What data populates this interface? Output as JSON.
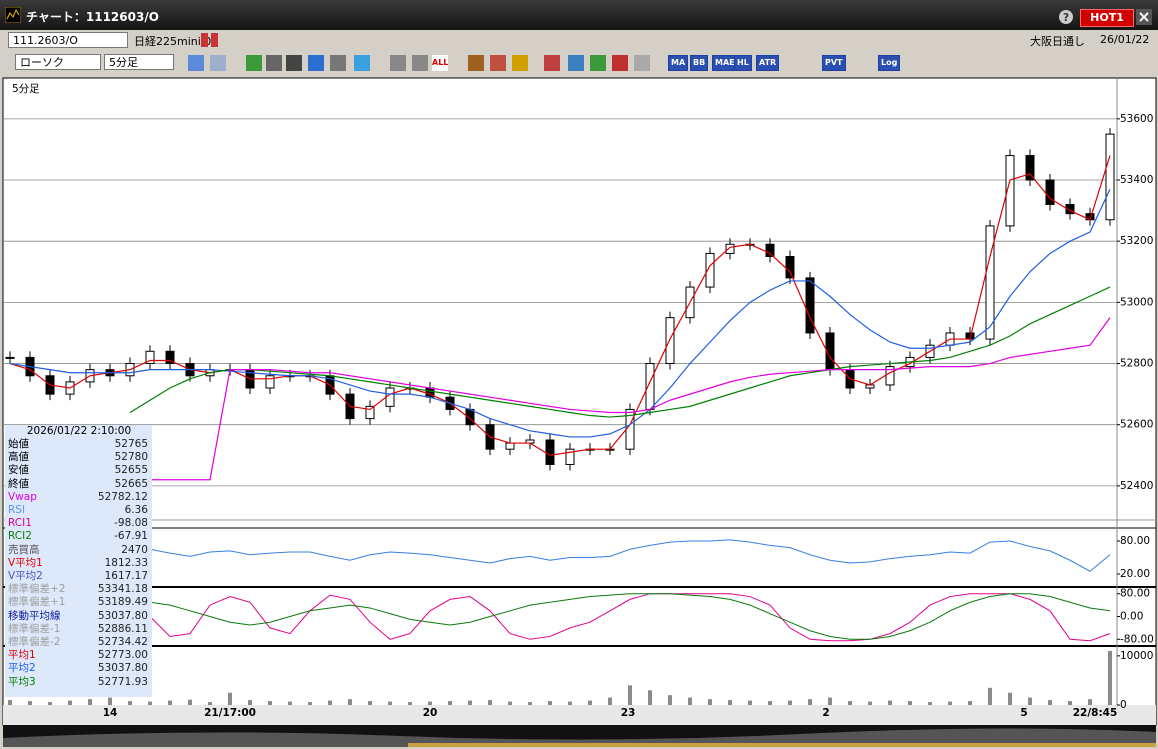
{
  "window": {
    "title": "チャート：1112603/O",
    "badge": "HOT1"
  },
  "toolbar": {
    "symbol": "111.2603/O",
    "name": "日経225mini 03",
    "market": "大阪日通し",
    "date": "26/01/22",
    "chart_type": "ローソク",
    "interval": "5分足",
    "buttons": [
      "ALL",
      "MA",
      "BB",
      "MAE",
      "HL",
      "ATR",
      "PVT",
      "Log"
    ]
  },
  "chart_data": [
    {
      "type": "candlestick",
      "title": "5分足",
      "ylim": [
        52295,
        53727
      ],
      "yticks": [
        52400,
        52600,
        52800,
        53000,
        53200,
        53400,
        53600
      ],
      "grid": true,
      "xtick_labels": [
        "14",
        "21/17:00",
        "20",
        "23",
        "2",
        "5",
        "22/8:45"
      ],
      "series": [
        {
          "color": "#000000",
          "values": [
            52820,
            52760,
            52700,
            52740,
            52780,
            52760,
            52800,
            52840,
            52800,
            52760,
            52780,
            52780,
            52720,
            52760,
            52760,
            52760,
            52700,
            52620,
            52660,
            52720,
            52720,
            52690,
            52650,
            52600,
            52520,
            52540,
            52550,
            52470,
            52520,
            52520,
            52520,
            52650,
            52800,
            52950,
            53050,
            53160,
            53190,
            53190,
            53150,
            53080,
            52900,
            52780,
            52720,
            52730,
            52790,
            52820,
            52860,
            52900,
            52880,
            53250,
            53480,
            53400,
            53320,
            53290,
            53270,
            53550
          ]
        },
        {
          "color": "#e00000",
          "values": [
            52800,
            52780,
            52730,
            52720,
            52760,
            52770,
            52780,
            52810,
            52810,
            52780,
            52770,
            52780,
            52750,
            52750,
            52760,
            52760,
            52730,
            52660,
            52650,
            52700,
            52720,
            52700,
            52670,
            52620,
            52560,
            52540,
            52540,
            52500,
            52510,
            52520,
            52520,
            52600,
            52740,
            52880,
            53000,
            53120,
            53180,
            53190,
            53160,
            53100,
            52950,
            52820,
            52750,
            52730,
            52770,
            52800,
            52840,
            52880,
            52880,
            53150,
            53400,
            53420,
            53340,
            53300,
            53270,
            53480
          ]
        },
        {
          "color": "#1f5fe0",
          "values": [
            52800,
            52790,
            52780,
            52770,
            52770,
            52770,
            52770,
            52780,
            52780,
            52780,
            52780,
            52775,
            52770,
            52765,
            52760,
            52760,
            52750,
            52730,
            52710,
            52700,
            52700,
            52690,
            52670,
            52650,
            52620,
            52600,
            52580,
            52570,
            52560,
            52560,
            52570,
            52600,
            52650,
            52720,
            52800,
            52870,
            52940,
            53000,
            53040,
            53070,
            53070,
            53020,
            52960,
            52910,
            52870,
            52850,
            52850,
            52860,
            52870,
            52920,
            53020,
            53100,
            53160,
            53200,
            53230,
            53370
          ]
        },
        {
          "color": "#008000",
          "values": [
            null,
            null,
            null,
            null,
            null,
            null,
            52640,
            52680,
            52720,
            52750,
            52770,
            52780,
            52780,
            52775,
            52770,
            52765,
            52760,
            52750,
            52740,
            52730,
            52720,
            52710,
            52700,
            52690,
            52680,
            52670,
            52660,
            52650,
            52640,
            52630,
            52625,
            52630,
            52640,
            52650,
            52660,
            52680,
            52700,
            52720,
            52740,
            52760,
            52770,
            52780,
            52790,
            52795,
            52800,
            52805,
            52810,
            52820,
            52840,
            52860,
            52890,
            52930,
            52960,
            52990,
            53020,
            53050
          ]
        },
        {
          "color": "#e000e0",
          "values": [
            null,
            null,
            null,
            null,
            null,
            null,
            null,
            52420,
            52420,
            52420,
            52420,
            52780,
            52780,
            52780,
            52775,
            52770,
            52770,
            52760,
            52750,
            52740,
            52730,
            52720,
            52710,
            52700,
            52690,
            52680,
            52670,
            52660,
            52650,
            52645,
            52640,
            52640,
            52650,
            52680,
            52700,
            52720,
            52740,
            52755,
            52765,
            52770,
            52775,
            52780,
            52780,
            52780,
            52780,
            52785,
            52790,
            52790,
            52790,
            52800,
            52820,
            52830,
            52840,
            52850,
            52860,
            52950
          ]
        }
      ]
    },
    {
      "type": "line",
      "ylim": [
        0,
        100
      ],
      "yticks": [
        {
          "value": 80,
          "label": "80.00"
        },
        {
          "value": 20,
          "label": "20.00"
        }
      ],
      "series": [
        {
          "color": "#3a7fe0",
          "values": [
            60,
            55,
            50,
            58,
            62,
            55,
            60,
            65,
            58,
            52,
            60,
            62,
            55,
            58,
            60,
            60,
            52,
            45,
            55,
            60,
            58,
            55,
            50,
            45,
            40,
            48,
            52,
            45,
            50,
            50,
            52,
            65,
            72,
            78,
            80,
            80,
            82,
            78,
            72,
            68,
            55,
            45,
            40,
            42,
            48,
            52,
            55,
            60,
            58,
            78,
            80,
            70,
            62,
            45,
            25,
            55
          ]
        }
      ]
    },
    {
      "type": "line",
      "ylim": [
        -100,
        100
      ],
      "yticks": [
        {
          "value": 80,
          "label": "80.00"
        },
        {
          "value": 0,
          "label": "0.00"
        },
        {
          "value": -80,
          "label": "-80.00"
        }
      ],
      "series": [
        {
          "color": "#e0008a",
          "values": [
            60,
            20,
            -60,
            -40,
            40,
            80,
            60,
            0,
            -70,
            -60,
            40,
            70,
            50,
            -40,
            -60,
            20,
            75,
            60,
            -20,
            -80,
            -60,
            20,
            60,
            70,
            20,
            -60,
            -80,
            -70,
            -40,
            -20,
            20,
            60,
            80,
            80,
            80,
            80,
            80,
            70,
            40,
            -40,
            -80,
            -85,
            -85,
            -80,
            -60,
            -20,
            40,
            70,
            80,
            80,
            80,
            60,
            20,
            -80,
            -85,
            -60
          ]
        },
        {
          "color": "#0a7a0a",
          "values": [
            70,
            60,
            30,
            0,
            -20,
            0,
            30,
            50,
            40,
            20,
            0,
            -20,
            -30,
            -20,
            0,
            20,
            30,
            40,
            30,
            10,
            -10,
            -20,
            -30,
            -20,
            0,
            20,
            40,
            50,
            60,
            70,
            75,
            80,
            80,
            80,
            75,
            70,
            60,
            40,
            10,
            -20,
            -50,
            -70,
            -80,
            -80,
            -70,
            -50,
            -20,
            20,
            50,
            70,
            80,
            80,
            70,
            50,
            30,
            20
          ]
        }
      ]
    },
    {
      "type": "bar",
      "ylim": [
        0,
        11800
      ],
      "yticks": [
        10000,
        0
      ],
      "series": [
        {
          "color": "#8a8a8a",
          "values": [
            1000,
            800,
            600,
            900,
            1200,
            1500,
            800,
            700,
            900,
            1100,
            600,
            2500,
            1000,
            800,
            700,
            600,
            900,
            1200,
            800,
            700,
            600,
            700,
            800,
            900,
            1000,
            700,
            600,
            800,
            700,
            900,
            1500,
            4000,
            3000,
            2000,
            1500,
            1200,
            1000,
            900,
            800,
            900,
            1200,
            1500,
            800,
            700,
            900,
            800,
            600,
            700,
            800,
            3500,
            2500,
            1500,
            1000,
            800,
            1200,
            11000
          ]
        }
      ]
    }
  ],
  "info": {
    "datetime": "2026/01/22  2:10:00",
    "rows": [
      {
        "label": "始値",
        "value": "52765",
        "color": "#000000"
      },
      {
        "label": "高値",
        "value": "52780",
        "color": "#000000"
      },
      {
        "label": "安値",
        "value": "52655",
        "color": "#000000"
      },
      {
        "label": "終値",
        "value": "52665",
        "color": "#000000"
      },
      {
        "label": "Vwap",
        "value": "52782.12",
        "color": "#e000e0"
      },
      {
        "label": "RSI",
        "value": "6.36",
        "color": "#5a9ae8"
      },
      {
        "label": "RCI1",
        "value": "-98.08",
        "color": "#e0008a"
      },
      {
        "label": "RCI2",
        "value": "-67.91",
        "color": "#0a7a0a"
      },
      {
        "label": "売買高",
        "value": "2470",
        "color": "#555555"
      },
      {
        "label": "V平均1",
        "value": "1812.33",
        "color": "#e00000"
      },
      {
        "label": "V平均2",
        "value": "1617.17",
        "color": "#5050c0"
      },
      {
        "label": "標準偏差+2",
        "value": "53341.18",
        "color": "#a0a0a0"
      },
      {
        "label": "標準偏差+1",
        "value": "53189.49",
        "color": "#a0a0a0"
      },
      {
        "label": "移動平均線",
        "value": "53037.80",
        "color": "#1020a0"
      },
      {
        "label": "標準偏差-1",
        "value": "52886.11",
        "color": "#a0a0a0"
      },
      {
        "label": "標準偏差-2",
        "value": "52734.42",
        "color": "#a0a0a0"
      },
      {
        "label": "平均1",
        "value": "52773.00",
        "color": "#e00000"
      },
      {
        "label": "平均2",
        "value": "53037.80",
        "color": "#1f5fe0"
      },
      {
        "label": "平均3",
        "value": "52771.93",
        "color": "#008000"
      }
    ]
  }
}
